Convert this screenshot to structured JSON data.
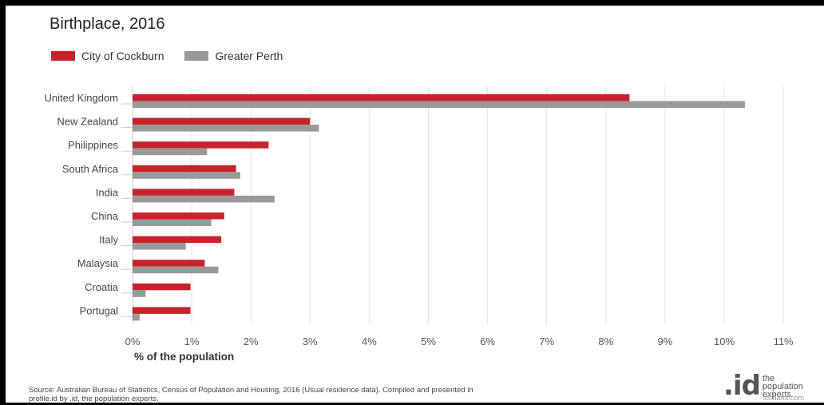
{
  "chart_data": {
    "type": "bar",
    "orientation": "horizontal",
    "title": "Birthplace, 2016",
    "categories": [
      "United Kingdom",
      "New Zealand",
      "Philippines",
      "South Africa",
      "India",
      "China",
      "Italy",
      "Malaysia",
      "Croatia",
      "Portugal"
    ],
    "series": [
      {
        "name": "City of Cockburn",
        "color": "#c8232c",
        "values": [
          8.4,
          3.0,
          2.3,
          1.75,
          1.72,
          1.55,
          1.5,
          1.22,
          0.98,
          0.98
        ]
      },
      {
        "name": "Greater Perth",
        "color": "#999999",
        "values": [
          10.35,
          3.15,
          1.26,
          1.82,
          2.4,
          1.33,
          0.9,
          1.45,
          0.22,
          0.12
        ]
      }
    ],
    "x_ticks": [
      "0%",
      "1%",
      "2%",
      "3%",
      "4%",
      "5%",
      "6%",
      "7%",
      "8%",
      "9%",
      "10%",
      "11%"
    ],
    "xlim": [
      0,
      11
    ],
    "xlabel": "% of the population",
    "ylabel": "",
    "grid": "vertical",
    "legend_position": "top-left"
  },
  "footer": {
    "source_line1": "Source: Australian Bureau of Statistics, Census of Population and Housing, 2016 (Usual residence data). Compiled and presented in",
    "source_line2": "profile.id by .id, the population experts."
  },
  "logo": {
    "mark": ".id",
    "line1": "the",
    "line2": "population",
    "line3": "experts"
  },
  "watermark": "idcharts.com"
}
